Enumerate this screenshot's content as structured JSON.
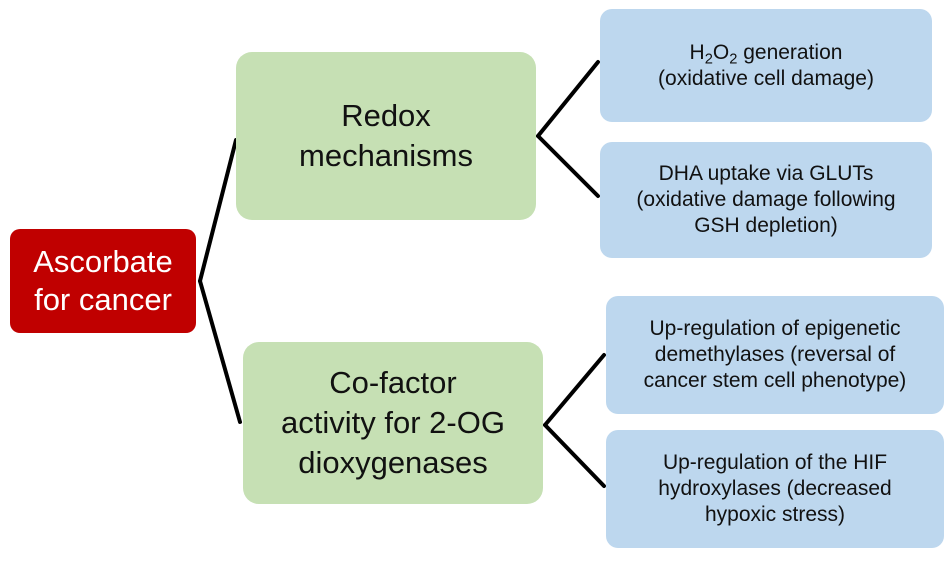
{
  "root": {
    "lines": [
      "Ascorbate",
      "for cancer"
    ],
    "color": "#c00000"
  },
  "branches": [
    {
      "lines": [
        "Redox",
        "mechanisms"
      ],
      "color": "#c6e0b4",
      "leaves": [
        {
          "line1_pre": "H",
          "sub1": "2",
          "mid": "O",
          "sub2": "2",
          "line1_post": " generation",
          "line2": "(oxidative cell damage)"
        },
        {
          "lines": [
            "DHA uptake via GLUTs",
            "(oxidative damage following",
            "GSH depletion)"
          ]
        }
      ]
    },
    {
      "lines": [
        "Co-factor",
        "activity for 2-OG",
        "dioxygenases"
      ],
      "color": "#c6e0b4",
      "leaves": [
        {
          "lines": [
            "Up-regulation of epigenetic",
            "demethylases (reversal of",
            "cancer stem cell phenotype)"
          ]
        },
        {
          "lines": [
            "Up-regulation of the HIF",
            "hydroxylases (decreased",
            "hypoxic stress)"
          ]
        }
      ]
    }
  ],
  "leaf_color": "#bdd7ee"
}
